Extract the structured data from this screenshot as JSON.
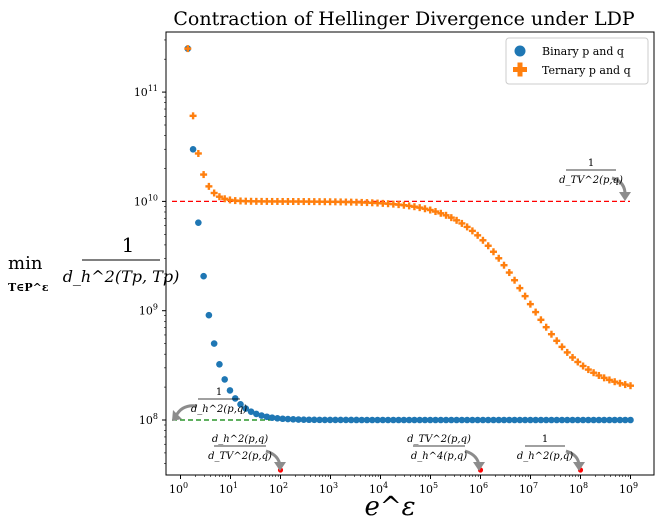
{
  "chart_data": {
    "type": "scatter",
    "title": "Contraction of Hellinger Divergence under LDP",
    "xlabel": "e^ε",
    "ylabel": {
      "prefix": "min",
      "subscript": "T∈P^ε",
      "numerator": "1",
      "denominator": "d_h^2(Tp, Tp)"
    },
    "x_scale": "log",
    "y_scale": "log",
    "xlim": [
      0.55,
      2000000000
    ],
    "ylim": [
      35000000,
      350000000000
    ],
    "x_ticks": [
      {
        "value": 1,
        "base": "10",
        "exp": "0"
      },
      {
        "value": 10,
        "base": "10",
        "exp": "1"
      },
      {
        "value": 100,
        "base": "10",
        "exp": "2"
      },
      {
        "value": 1000,
        "base": "10",
        "exp": "3"
      },
      {
        "value": 10000,
        "base": "10",
        "exp": "4"
      },
      {
        "value": 100000,
        "base": "10",
        "exp": "5"
      },
      {
        "value": 1000000,
        "base": "10",
        "exp": "6"
      },
      {
        "value": 10000000,
        "base": "10",
        "exp": "7"
      },
      {
        "value": 100000000,
        "base": "10",
        "exp": "8"
      },
      {
        "value": 1000000000,
        "base": "10",
        "exp": "9"
      }
    ],
    "y_ticks": [
      {
        "value": 100000000,
        "base": "10",
        "exp": "8"
      },
      {
        "value": 1000000000,
        "base": "10",
        "exp": "9"
      },
      {
        "value": 10000000000,
        "base": "10",
        "exp": "10"
      },
      {
        "value": 100000000000,
        "base": "10",
        "exp": "11"
      }
    ],
    "legend": {
      "placement": "top-right",
      "entries": [
        "Binary p and q",
        "Ternary p and q"
      ]
    },
    "series": [
      {
        "name": "Binary p and q",
        "marker": "circle",
        "color": "#1f77b4",
        "x_range": [
          1.4,
          1000000000
        ],
        "points": 85,
        "y_start": 250000000000,
        "y_floor": 100000000,
        "sample_values": [
          {
            "x": 1.4,
            "y": 250000000000
          },
          {
            "x": 3,
            "y": 30000000000
          },
          {
            "x": 10,
            "y": 3500000000
          },
          {
            "x": 100,
            "y": 480000000
          },
          {
            "x": 1000,
            "y": 155000000
          },
          {
            "x": 10000,
            "y": 105000000
          },
          {
            "x": 1000000000,
            "y": 100000000
          }
        ]
      },
      {
        "name": "Ternary p and q",
        "marker": "plus",
        "color": "#ff7f0e",
        "x_range": [
          1.4,
          1000000000
        ],
        "points": 85,
        "y_start": 250000000000,
        "y_plateau": 10000000000,
        "y_end": 180000000,
        "sample_values": [
          {
            "x": 1.4,
            "y": 250000000000
          },
          {
            "x": 3,
            "y": 38000000000
          },
          {
            "x": 10,
            "y": 12000000000
          },
          {
            "x": 100,
            "y": 10200000000
          },
          {
            "x": 100000,
            "y": 10000000000
          },
          {
            "x": 1000000,
            "y": 8000000000
          },
          {
            "x": 10000000,
            "y": 2300000000
          },
          {
            "x": 1000000000,
            "y": 180000000
          }
        ]
      }
    ],
    "reference_lines": [
      {
        "y": 10000000000,
        "color": "#ff0000",
        "style": "dashed",
        "label": {
          "numerator": "1",
          "denominator": "d_TV^2(p,q)"
        }
      },
      {
        "y": 100000000,
        "color": "#008000",
        "style": "dashed",
        "label": {
          "numerator": "1",
          "denominator": "d_h^2(p,q)"
        }
      }
    ],
    "annotations": [
      {
        "x": 100,
        "numerator": "d_h^2(p,q)",
        "denominator": "d_TV^2(p,q)"
      },
      {
        "x": 1000000,
        "numerator": "d_TV^2(p,q)",
        "denominator": "d_h^4(p,q)"
      },
      {
        "x": 100000000,
        "numerator": "1",
        "denominator": "d_h^2(p,q)"
      }
    ]
  }
}
